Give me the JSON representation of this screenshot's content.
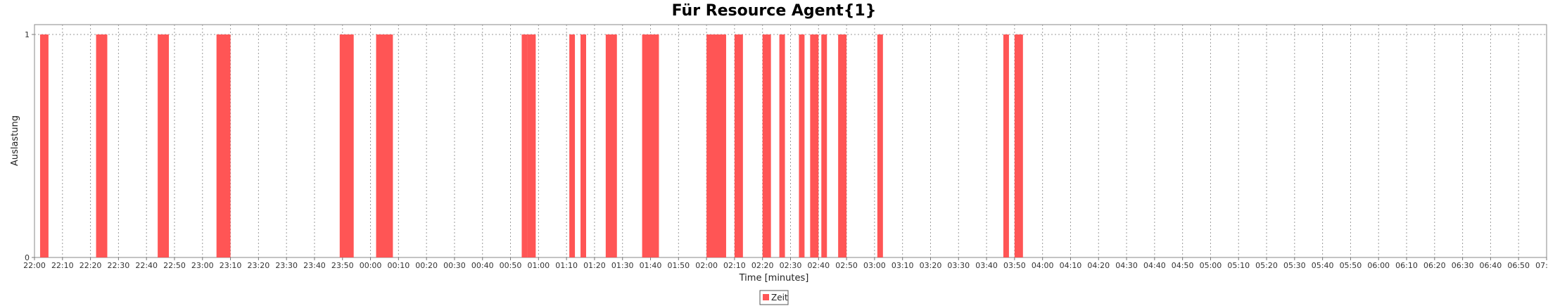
{
  "chart_data": {
    "type": "bar",
    "title": "Für Resource Agent{1}",
    "xlabel": "Time [minutes]",
    "ylabel": "Auslastung",
    "x_start": "22:00",
    "x_end": "07:00",
    "ylim": [
      0,
      1
    ],
    "y_ticks": [
      "0",
      "1"
    ],
    "x_ticks": [
      "22:00",
      "22:10",
      "22:20",
      "22:30",
      "22:40",
      "22:50",
      "23:00",
      "23:10",
      "23:20",
      "23:30",
      "23:40",
      "23:50",
      "00:00",
      "00:10",
      "00:20",
      "00:30",
      "00:40",
      "00:50",
      "01:00",
      "01:10",
      "01:20",
      "01:30",
      "01:40",
      "01:50",
      "02:00",
      "02:10",
      "02:20",
      "02:30",
      "02:40",
      "02:50",
      "03:00",
      "03:10",
      "03:20",
      "03:30",
      "03:40",
      "03:50",
      "04:00",
      "04:10",
      "04:20",
      "04:30",
      "04:40",
      "04:50",
      "05:00",
      "05:10",
      "05:20",
      "05:30",
      "05:40",
      "05:50",
      "06:00",
      "06:10",
      "06:20",
      "06:30",
      "06:40",
      "06:50",
      "07:00"
    ],
    "grid": true,
    "legend_position": "bottom-center",
    "series": [
      {
        "name": "Zeit",
        "color": "#ff5555",
        "intervals": [
          {
            "start": "22:02",
            "end": "22:05",
            "value": 1
          },
          {
            "start": "22:22",
            "end": "22:26",
            "value": 1
          },
          {
            "start": "22:44",
            "end": "22:48",
            "value": 1
          },
          {
            "start": "23:05",
            "end": "23:10",
            "value": 1
          },
          {
            "start": "23:49",
            "end": "23:54",
            "value": 1
          },
          {
            "start": "00:02",
            "end": "00:08",
            "value": 1
          },
          {
            "start": "00:54",
            "end": "00:56",
            "value": 1
          },
          {
            "start": "00:56",
            "end": "00:59",
            "value": 1
          },
          {
            "start": "01:11",
            "end": "01:13",
            "value": 1
          },
          {
            "start": "01:15",
            "end": "01:17",
            "value": 1
          },
          {
            "start": "01:24",
            "end": "01:28",
            "value": 1
          },
          {
            "start": "01:37",
            "end": "01:43",
            "value": 1
          },
          {
            "start": "02:00",
            "end": "02:07",
            "value": 1
          },
          {
            "start": "02:10",
            "end": "02:13",
            "value": 1
          },
          {
            "start": "02:20",
            "end": "02:23",
            "value": 1
          },
          {
            "start": "02:26",
            "end": "02:28",
            "value": 1
          },
          {
            "start": "02:33",
            "end": "02:35",
            "value": 1
          },
          {
            "start": "02:37",
            "end": "02:40",
            "value": 1
          },
          {
            "start": "02:41",
            "end": "02:43",
            "value": 1
          },
          {
            "start": "02:47",
            "end": "02:50",
            "value": 1
          },
          {
            "start": "03:01",
            "end": "03:03",
            "value": 1
          },
          {
            "start": "03:46",
            "end": "03:48",
            "value": 1
          },
          {
            "start": "03:50",
            "end": "03:53",
            "value": 1
          }
        ]
      }
    ]
  }
}
